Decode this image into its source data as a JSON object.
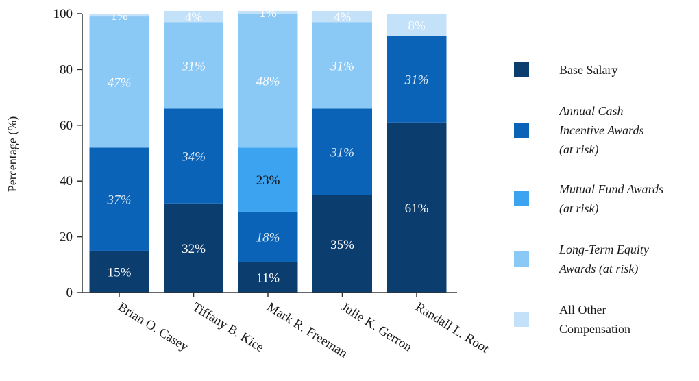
{
  "chart_data": {
    "type": "bar",
    "stacked": true,
    "ylabel": "Percentage (%)",
    "ylim": [
      0,
      100
    ],
    "yticks": [
      0,
      20,
      40,
      60,
      80,
      100
    ],
    "grid": false,
    "legend_position": "right",
    "categories": [
      "Brian O. Casey",
      "Tiffany B. Kice",
      "Mark R. Freeman",
      "Julie K. Gerron",
      "Randall L. Root"
    ],
    "series": [
      {
        "name": "Base Salary",
        "color": "#0b3d6e",
        "label_color": "#ffffff",
        "label_italic": false,
        "values": [
          15,
          32,
          11,
          35,
          61
        ],
        "labels": [
          "15%",
          "32%",
          "11%",
          "35%",
          "61%"
        ]
      },
      {
        "name": "Annual Cash Incentive Awards (at risk)",
        "color": "#0b63b8",
        "label_color": "#dce9f7",
        "label_italic": true,
        "values": [
          37,
          34,
          18,
          31,
          31
        ],
        "labels": [
          "37%",
          "34%",
          "18%",
          "31%",
          "31%"
        ]
      },
      {
        "name": "Mutual Fund Awards (at risk)",
        "color": "#3ba3ef",
        "label_color": "#111111",
        "label_italic": false,
        "values": [
          0,
          0,
          23,
          0,
          0
        ],
        "labels": [
          "",
          "",
          "23%",
          "",
          ""
        ]
      },
      {
        "name": "Long-Term Equity Awards (at risk)",
        "color": "#8ac8f5",
        "label_color": "#ffffff",
        "label_italic": true,
        "values": [
          47,
          31,
          48,
          31,
          0
        ],
        "labels": [
          "47%",
          "31%",
          "48%",
          "31%",
          ""
        ]
      },
      {
        "name": "All Other Compensation",
        "color": "#c3e1f9",
        "label_color": "#ffffff",
        "label_italic": false,
        "values": [
          1,
          4,
          1,
          4,
          8
        ],
        "labels": [
          "1%",
          "4%",
          "1%",
          "4%",
          "8%"
        ]
      }
    ],
    "legend": [
      {
        "lines": [
          "Base Salary"
        ],
        "italic": false
      },
      {
        "lines": [
          "Annual Cash",
          "Incentive Awards",
          "(at risk)"
        ],
        "italic": true
      },
      {
        "lines": [
          "Mutual Fund Awards",
          "(at risk)"
        ],
        "italic": true
      },
      {
        "lines": [
          "Long-Term Equity",
          "Awards (at risk)"
        ],
        "italic": true
      },
      {
        "lines": [
          "All Other",
          "Compensation"
        ],
        "italic": false
      }
    ]
  }
}
